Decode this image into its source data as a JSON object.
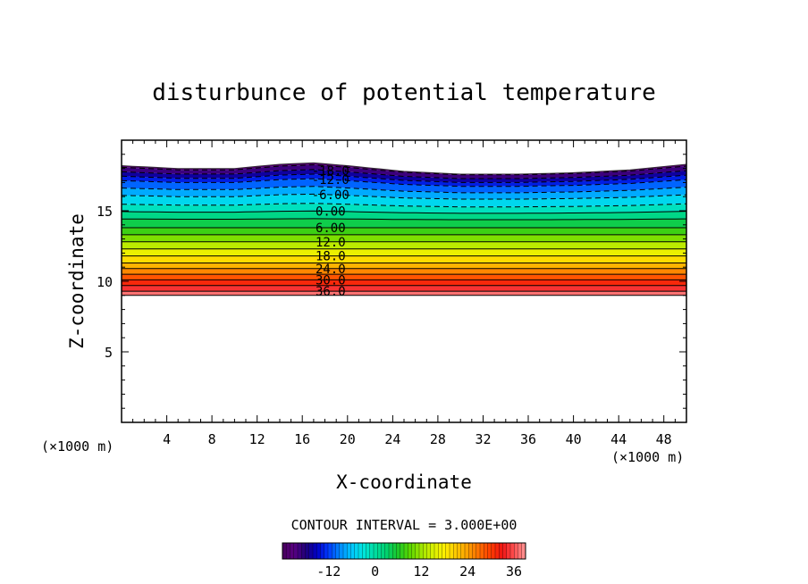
{
  "chart_data": {
    "type": "contour",
    "title": "disturbunce of potential temperature",
    "xlabel": "X-coordinate",
    "ylabel": "Z-coordinate",
    "x_unit": "(×1000 m)",
    "y_unit": "(×1000 m)",
    "xlim": [
      0,
      50
    ],
    "ylim": [
      0,
      20
    ],
    "x_ticks": [
      4,
      8,
      12,
      16,
      20,
      24,
      28,
      32,
      36,
      40,
      44,
      48
    ],
    "y_ticks": [
      5,
      10,
      15
    ],
    "contour_interval_text": "CONTOUR INTERVAL = 3.000E+00",
    "contour_labels": [
      "-18.0",
      "-12.0",
      "-6.00",
      "0.00",
      "6.00",
      "12.0",
      "18.0",
      "24.0",
      "30.0",
      "36.0"
    ],
    "field_bottom_z": 9.0,
    "field_top_z": [
      {
        "x": 0,
        "z": 18.2
      },
      {
        "x": 5,
        "z": 18.0
      },
      {
        "x": 10,
        "z": 18.0
      },
      {
        "x": 14,
        "z": 18.3
      },
      {
        "x": 17,
        "z": 18.4
      },
      {
        "x": 20,
        "z": 18.2
      },
      {
        "x": 25,
        "z": 17.8
      },
      {
        "x": 30,
        "z": 17.6
      },
      {
        "x": 35,
        "z": 17.6
      },
      {
        "x": 40,
        "z": 17.7
      },
      {
        "x": 45,
        "z": 17.9
      },
      {
        "x": 50,
        "z": 18.3
      }
    ],
    "levels": [
      {
        "value": -21,
        "z": 17.9
      },
      {
        "value": -18,
        "z": 17.6
      },
      {
        "value": -15,
        "z": 17.3
      },
      {
        "value": -12,
        "z": 17.0
      },
      {
        "value": -9,
        "z": 16.5
      },
      {
        "value": -6,
        "z": 16.0
      },
      {
        "value": -3,
        "z": 15.4
      },
      {
        "value": 0,
        "z": 14.9
      },
      {
        "value": 3,
        "z": 14.4
      },
      {
        "value": 6,
        "z": 13.8
      },
      {
        "value": 9,
        "z": 13.3
      },
      {
        "value": 12,
        "z": 12.8
      },
      {
        "value": 15,
        "z": 12.3
      },
      {
        "value": 18,
        "z": 11.8
      },
      {
        "value": 21,
        "z": 11.3
      },
      {
        "value": 24,
        "z": 10.9
      },
      {
        "value": 27,
        "z": 10.5
      },
      {
        "value": 30,
        "z": 10.1
      },
      {
        "value": 33,
        "z": 9.7
      },
      {
        "value": 36,
        "z": 9.3
      },
      {
        "value": 39,
        "z": 9.0
      }
    ],
    "colorbar": {
      "min": -24,
      "max": 39,
      "tick_values": [
        -12,
        0,
        12,
        24,
        36
      ],
      "tick_labels": [
        "-12",
        "0",
        "12",
        "24",
        "36"
      ]
    }
  }
}
